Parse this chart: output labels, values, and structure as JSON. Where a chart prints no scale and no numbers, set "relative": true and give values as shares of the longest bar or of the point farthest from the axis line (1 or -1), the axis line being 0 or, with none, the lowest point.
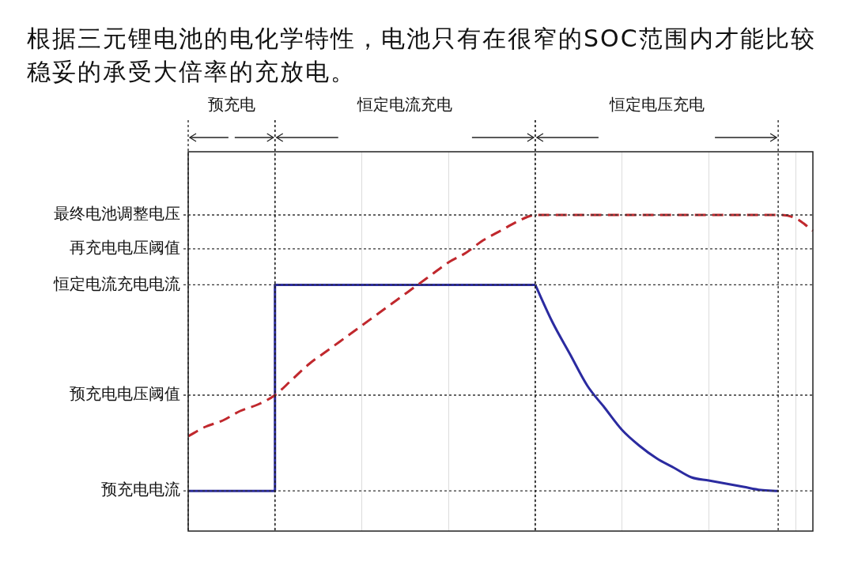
{
  "chart_data": {
    "type": "line",
    "title": "根据三元锂电池的电化学特性，电池只有在很窄的SOC范围内才能比较稳妥的承受大倍率的充放电。",
    "relative": true,
    "legend": false,
    "grid": "x",
    "marker": "none",
    "categories": [
      null,
      null,
      null,
      null,
      null,
      null,
      null,
      null,
      null,
      null,
      null,
      null,
      null,
      null,
      null,
      null,
      null,
      null,
      null,
      null,
      null,
      null,
      null,
      null,
      null,
      null,
      null,
      null,
      null,
      null,
      null,
      null,
      null,
      null,
      null,
      null,
      null
    ],
    "series": [
      {
        "color": "#c0282d",
        "line_style": "dashed",
        "values": [
          0.3,
          0.33,
          0.35,
          0.38,
          0.4,
          0.43,
          0.48,
          0.53,
          0.57,
          0.61,
          0.65,
          0.69,
          0.73,
          0.77,
          0.81,
          0.85,
          0.88,
          0.92,
          0.95,
          0.98,
          1.0,
          1.0,
          1.0,
          1.0,
          1.0,
          1.0,
          1.0,
          1.0,
          1.0,
          1.0,
          1.0,
          1.0,
          1.0,
          1.0,
          1.0,
          0.99,
          0.95
        ]
      },
      {
        "type": "step",
        "color": "#2b2ba0",
        "line_style": "solid",
        "values": [
          0.127,
          0.127,
          0.127,
          0.127,
          0.127,
          0.779,
          0.779,
          0.779,
          0.779,
          0.779,
          0.779,
          0.779,
          0.779,
          0.779,
          0.779,
          0.779,
          0.779,
          0.779,
          0.779,
          0.779,
          0.779,
          null,
          null,
          null,
          null,
          null,
          null,
          null,
          null,
          null,
          null,
          null,
          null,
          null,
          null,
          null,
          null
        ]
      },
      {
        "type": "line",
        "color": "#2b2ba0",
        "line_style": "solid",
        "values": [
          null,
          null,
          null,
          null,
          null,
          null,
          null,
          null,
          null,
          null,
          null,
          null,
          null,
          null,
          null,
          null,
          null,
          null,
          null,
          null,
          0.779,
          0.66,
          0.56,
          0.46,
          0.39,
          0.32,
          0.27,
          0.23,
          0.2,
          0.17,
          0.16,
          0.15,
          0.14,
          0.13,
          0.127,
          null,
          null
        ]
      }
    ],
    "ref_lines": [
      {
        "axis": "y",
        "value": 1.0,
        "label": "最终电池调整电压",
        "line_style": "dotted"
      },
      {
        "axis": "y",
        "value": 0.893,
        "label": "再充电电压阈值",
        "line_style": "dotted"
      },
      {
        "axis": "y",
        "value": 0.779,
        "label": "恒定电流充电电流",
        "line_style": "dotted"
      },
      {
        "axis": "y",
        "value": 0.43,
        "label": "预充电电压阈值",
        "line_style": "dotted"
      },
      {
        "axis": "y",
        "value": 0.127,
        "label": "预充电电流",
        "line_style": "dotted"
      }
    ],
    "annotations": [
      "预充电",
      "恒定电流充电",
      "恒定电压充电"
    ]
  }
}
